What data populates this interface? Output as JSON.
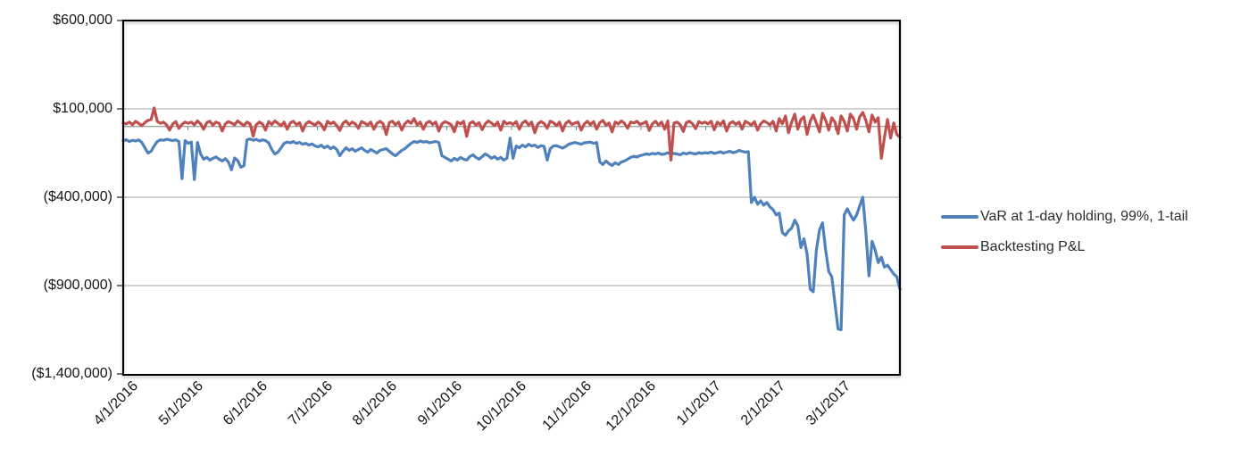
{
  "chart_data": {
    "type": "line",
    "title": "",
    "xlabel": "",
    "ylabel": "",
    "grid": true,
    "legend_position": "right",
    "y_axis": {
      "min": -1400000,
      "max": 600000,
      "tick_values": [
        600000,
        100000,
        -400000,
        -900000,
        -1400000
      ],
      "tick_labels": [
        "$600,000",
        "$100,000",
        "($400,000)",
        "($900,000)",
        "($1,400,000)"
      ]
    },
    "x_labels": [
      "4/1/2016",
      "5/1/2016",
      "6/1/2016",
      "7/1/2016",
      "8/1/2016",
      "9/1/2016",
      "10/1/2016",
      "11/1/2016",
      "12/1/2016",
      "1/1/2017",
      "2/1/2017",
      "3/1/2017"
    ],
    "series": [
      {
        "name": "VaR at 1-day holding, 99%, 1-tail",
        "color": "#4F81BD",
        "values": [
          -80000,
          -75000,
          -85000,
          -78000,
          -82000,
          -75000,
          -90000,
          -120000,
          -150000,
          -140000,
          -110000,
          -85000,
          -75000,
          -78000,
          -72000,
          -76000,
          -80000,
          -75000,
          -85000,
          -295000,
          -80000,
          -95000,
          -88000,
          -300000,
          -90000,
          -155000,
          -185000,
          -175000,
          -190000,
          -180000,
          -172000,
          -185000,
          -195000,
          -182000,
          -200000,
          -245000,
          -178000,
          -192000,
          -230000,
          -222000,
          -75000,
          -70000,
          -78000,
          -72000,
          -82000,
          -75000,
          -80000,
          -92000,
          -130000,
          -155000,
          -145000,
          -120000,
          -95000,
          -88000,
          -92000,
          -85000,
          -95000,
          -90000,
          -100000,
          -95000,
          -105000,
          -98000,
          -110000,
          -115000,
          -105000,
          -120000,
          -110000,
          -125000,
          -115000,
          -130000,
          -165000,
          -140000,
          -120000,
          -135000,
          -125000,
          -140000,
          -130000,
          -120000,
          -135000,
          -145000,
          -130000,
          -140000,
          -150000,
          -135000,
          -130000,
          -125000,
          -140000,
          -155000,
          -165000,
          -150000,
          -135000,
          -125000,
          -110000,
          -95000,
          -85000,
          -90000,
          -82000,
          -88000,
          -85000,
          -92000,
          -88000,
          -85000,
          -90000,
          -165000,
          -175000,
          -185000,
          -195000,
          -180000,
          -190000,
          -175000,
          -185000,
          -190000,
          -170000,
          -160000,
          -175000,
          -185000,
          -170000,
          -155000,
          -165000,
          -180000,
          -170000,
          -185000,
          -175000,
          -190000,
          -180000,
          -65000,
          -180000,
          -110000,
          -120000,
          -105000,
          -115000,
          -100000,
          -110000,
          -105000,
          -118000,
          -108000,
          -112000,
          -190000,
          -125000,
          -110000,
          -108000,
          -115000,
          -122000,
          -112000,
          -100000,
          -95000,
          -90000,
          -95000,
          -100000,
          -92000,
          -90000,
          -88000,
          -95000,
          -90000,
          -200000,
          -215000,
          -195000,
          -210000,
          -220000,
          -205000,
          -215000,
          -200000,
          -195000,
          -185000,
          -175000,
          -168000,
          -172000,
          -165000,
          -160000,
          -155000,
          -158000,
          -152000,
          -155000,
          -150000,
          -158000,
          -155000,
          -148000,
          -158000,
          -152000,
          -155000,
          -160000,
          -150000,
          -155000,
          -148000,
          -152000,
          -155000,
          -148000,
          -152000,
          -148000,
          -150000,
          -145000,
          -152000,
          -148000,
          -143000,
          -150000,
          -145000,
          -140000,
          -148000,
          -144000,
          -135000,
          -140000,
          -145000,
          -142000,
          -430000,
          -400000,
          -440000,
          -420000,
          -445000,
          -430000,
          -455000,
          -470000,
          -500000,
          -490000,
          -600000,
          -615000,
          -590000,
          -575000,
          -530000,
          -560000,
          -685000,
          -635000,
          -720000,
          -920000,
          -935000,
          -700000,
          -585000,
          -545000,
          -700000,
          -820000,
          -850000,
          -1000000,
          -1145000,
          -1150000,
          -500000,
          -465000,
          -500000,
          -530000,
          -500000,
          -450000,
          -400000,
          -600000,
          -845000,
          -650000,
          -700000,
          -770000,
          -740000,
          -795000,
          -785000,
          -810000,
          -835000,
          -850000,
          -920000
        ]
      },
      {
        "name": "Backtesting P&L",
        "color": "#C0504D",
        "values": [
          20000,
          15000,
          25000,
          10000,
          30000,
          18000,
          5000,
          22000,
          35000,
          40000,
          105000,
          30000,
          18000,
          25000,
          10000,
          -20000,
          15000,
          28000,
          -10000,
          12000,
          25000,
          18000,
          25000,
          10000,
          32000,
          15000,
          -15000,
          22000,
          30000,
          8000,
          25000,
          18000,
          -25000,
          15000,
          28000,
          20000,
          10000,
          32000,
          18000,
          5000,
          25000,
          15000,
          -55000,
          10000,
          25000,
          15000,
          -20000,
          28000,
          12000,
          32000,
          18000,
          5000,
          25000,
          -15000,
          20000,
          30000,
          10000,
          22000,
          -25000,
          15000,
          28000,
          18000,
          8000,
          25000,
          12000,
          -18000,
          30000,
          15000,
          25000,
          5000,
          -22000,
          18000,
          32000,
          10000,
          25000,
          15000,
          -10000,
          28000,
          20000,
          8000,
          25000,
          -15000,
          18000,
          30000,
          15000,
          -45000,
          22000,
          30000,
          10000,
          25000,
          -20000,
          15000,
          32000,
          18000,
          45000,
          8000,
          25000,
          -15000,
          20000,
          30000,
          12000,
          25000,
          -25000,
          15000,
          28000,
          20000,
          10000,
          -30000,
          25000,
          15000,
          30000,
          -55000,
          18000,
          28000,
          8000,
          22000,
          -18000,
          15000,
          32000,
          20000,
          5000,
          25000,
          -20000,
          30000,
          15000,
          22000,
          12000,
          28000,
          -15000,
          20000,
          32000,
          8000,
          25000,
          -35000,
          15000,
          28000,
          18000,
          -10000,
          30000,
          22000,
          5000,
          25000,
          -25000,
          18000,
          32000,
          12000,
          20000,
          25000,
          -20000,
          15000,
          30000,
          10000,
          28000,
          -15000,
          22000,
          35000,
          8000,
          20000,
          -30000,
          25000,
          15000,
          32000,
          18000,
          -10000,
          25000,
          20000,
          30000,
          12000,
          18000,
          28000,
          -22000,
          15000,
          30000,
          8000,
          25000,
          -15000,
          32000,
          -190000,
          20000,
          25000,
          10000,
          -28000,
          22000,
          30000,
          15000,
          -12000,
          28000,
          18000,
          25000,
          15000,
          30000,
          -18000,
          25000,
          10000,
          32000,
          -25000,
          18000,
          28000,
          12000,
          25000,
          -15000,
          30000,
          20000,
          8000,
          28000,
          -20000,
          15000,
          32000,
          22000,
          10000,
          30000,
          -25000,
          45000,
          15000,
          60000,
          -35000,
          25000,
          70000,
          -15000,
          40000,
          55000,
          -45000,
          30000,
          65000,
          20000,
          -30000,
          75000,
          35000,
          -20000,
          50000,
          25000,
          -40000,
          60000,
          30000,
          -25000,
          70000,
          45000,
          -15000,
          55000,
          80000,
          35000,
          -30000,
          65000,
          25000,
          50000,
          -180000,
          -60000,
          40000,
          -65000,
          20000,
          -45000,
          -60000
        ]
      }
    ],
    "colors": {
      "grid": "#A6A6A6",
      "zero_axis": "#808080",
      "plot_border": "#000000",
      "series_var": "#4F81BD",
      "series_pnl": "#C0504D"
    }
  },
  "legend": {
    "items": [
      {
        "label": "VaR at 1-day holding, 99%, 1-tail"
      },
      {
        "label": "Backtesting P&L"
      }
    ]
  }
}
